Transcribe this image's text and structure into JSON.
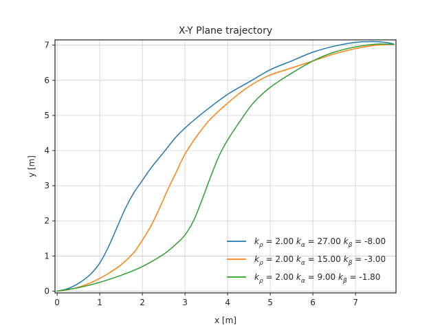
{
  "chart_data": {
    "type": "line",
    "title": "X-Y Plane trajectory",
    "xlabel": "x [m]",
    "ylabel": "y [m]",
    "xlim": [
      -0.05,
      7.95
    ],
    "ylim": [
      -0.05,
      7.15
    ],
    "xticks": [
      "0",
      "1",
      "2",
      "3",
      "4",
      "5",
      "6",
      "7"
    ],
    "yticks": [
      "0",
      "1",
      "2",
      "3",
      "4",
      "5",
      "6",
      "7"
    ],
    "grid": true,
    "legend_position": "lower-right",
    "series": [
      {
        "name": "k_ρ = 2.00 k_α = 27.00 k_β = -8.00",
        "legend_parts": [
          {
            "t": "k",
            "s": "ρ",
            "v": " = 2.00 "
          },
          {
            "t": "k",
            "s": "α",
            "v": " = 27.00 "
          },
          {
            "t": "k",
            "s": "β",
            "v": " = -8.00"
          }
        ],
        "color": "#1f77b4",
        "x": [
          0.0,
          0.2,
          0.4,
          0.6,
          0.8,
          1.0,
          1.2,
          1.4,
          1.6,
          1.8,
          2.0,
          2.2,
          2.5,
          2.8,
          3.1,
          3.5,
          4.0,
          4.5,
          5.0,
          5.5,
          6.0,
          6.5,
          7.0,
          7.4,
          7.7,
          7.9
        ],
        "y": [
          0.0,
          0.05,
          0.15,
          0.3,
          0.5,
          0.8,
          1.25,
          1.8,
          2.35,
          2.8,
          3.15,
          3.5,
          3.95,
          4.4,
          4.75,
          5.15,
          5.6,
          5.95,
          6.3,
          6.55,
          6.8,
          6.97,
          7.08,
          7.1,
          7.08,
          7.03
        ]
      },
      {
        "name": "k_ρ = 2.00 k_α = 15.00 k_β = -3.00",
        "legend_parts": [
          {
            "t": "k",
            "s": "ρ",
            "v": " = 2.00 "
          },
          {
            "t": "k",
            "s": "α",
            "v": " = 15.00 "
          },
          {
            "t": "k",
            "s": "β",
            "v": " = -3.00"
          }
        ],
        "color": "#ff7f0e",
        "x": [
          0.0,
          0.3,
          0.6,
          0.9,
          1.2,
          1.5,
          1.8,
          2.0,
          2.2,
          2.4,
          2.6,
          2.8,
          3.0,
          3.3,
          3.6,
          4.0,
          4.3,
          4.6,
          5.0,
          5.5,
          6.0,
          6.5,
          7.0,
          7.5,
          7.9
        ],
        "y": [
          0.0,
          0.05,
          0.15,
          0.3,
          0.5,
          0.75,
          1.1,
          1.45,
          1.85,
          2.35,
          2.9,
          3.4,
          3.9,
          4.45,
          4.9,
          5.35,
          5.65,
          5.9,
          6.15,
          6.35,
          6.55,
          6.75,
          6.9,
          7.0,
          7.02
        ]
      },
      {
        "name": "k_ρ = 2.00 k_α = 9.00 k_β = -1.80",
        "legend_parts": [
          {
            "t": "k",
            "s": "ρ",
            "v": " = 2.00 "
          },
          {
            "t": "k",
            "s": "α",
            "v": " = 9.00 "
          },
          {
            "t": "k",
            "s": "β",
            "v": " = -1.80"
          }
        ],
        "color": "#2ca02c",
        "x": [
          0.0,
          0.5,
          1.0,
          1.5,
          2.0,
          2.5,
          2.8,
          3.0,
          3.2,
          3.4,
          3.6,
          3.8,
          4.0,
          4.3,
          4.6,
          5.0,
          5.5,
          6.0,
          6.5,
          7.0,
          7.5,
          7.9
        ],
        "y": [
          0.0,
          0.1,
          0.25,
          0.45,
          0.7,
          1.05,
          1.35,
          1.6,
          2.0,
          2.6,
          3.25,
          3.85,
          4.3,
          4.85,
          5.35,
          5.8,
          6.2,
          6.55,
          6.8,
          6.95,
          7.03,
          7.02
        ]
      }
    ]
  }
}
